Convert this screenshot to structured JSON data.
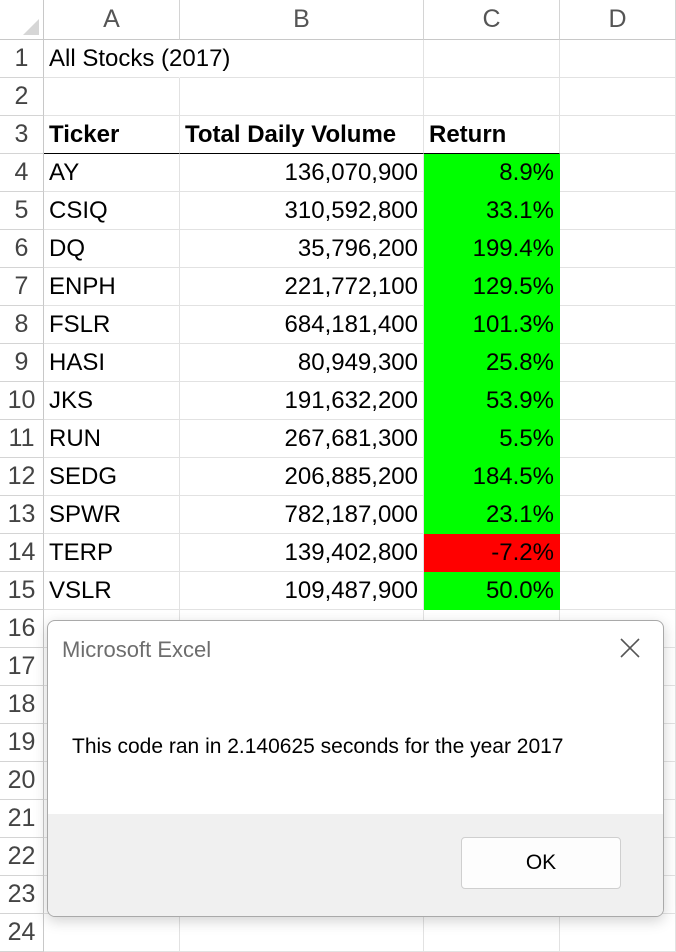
{
  "columns": [
    "A",
    "B",
    "C",
    "D"
  ],
  "rows": [
    "1",
    "2",
    "3",
    "4",
    "5",
    "6",
    "7",
    "8",
    "9",
    "10",
    "11",
    "12",
    "13",
    "14",
    "15",
    "16",
    "17",
    "18",
    "19",
    "20",
    "21",
    "22",
    "23",
    "24"
  ],
  "sheet": {
    "title": "All Stocks (2017)",
    "headers": {
      "ticker": "Ticker",
      "volume": "Total Daily Volume",
      "return": "Return"
    },
    "data": [
      {
        "ticker": "AY",
        "volume": "136,070,900",
        "return": "8.9%",
        "status": "positive"
      },
      {
        "ticker": "CSIQ",
        "volume": "310,592,800",
        "return": "33.1%",
        "status": "positive"
      },
      {
        "ticker": "DQ",
        "volume": "35,796,200",
        "return": "199.4%",
        "status": "positive"
      },
      {
        "ticker": "ENPH",
        "volume": "221,772,100",
        "return": "129.5%",
        "status": "positive"
      },
      {
        "ticker": "FSLR",
        "volume": "684,181,400",
        "return": "101.3%",
        "status": "positive"
      },
      {
        "ticker": "HASI",
        "volume": "80,949,300",
        "return": "25.8%",
        "status": "positive"
      },
      {
        "ticker": "JKS",
        "volume": "191,632,200",
        "return": "53.9%",
        "status": "positive"
      },
      {
        "ticker": "RUN",
        "volume": "267,681,300",
        "return": "5.5%",
        "status": "positive"
      },
      {
        "ticker": "SEDG",
        "volume": "206,885,200",
        "return": "184.5%",
        "status": "positive"
      },
      {
        "ticker": "SPWR",
        "volume": "782,187,000",
        "return": "23.1%",
        "status": "positive"
      },
      {
        "ticker": "TERP",
        "volume": "139,402,800",
        "return": "-7.2%",
        "status": "negative"
      },
      {
        "ticker": "VSLR",
        "volume": "109,487,900",
        "return": "50.0%",
        "status": "positive"
      }
    ]
  },
  "colors": {
    "positive": "#00ff00",
    "negative": "#ff0000",
    "grid": "#e2e2e2"
  },
  "dialog": {
    "title": "Microsoft Excel",
    "message": "This code ran in 2.140625 seconds for the year 2017",
    "ok_label": "OK",
    "close_icon": "close-icon"
  }
}
